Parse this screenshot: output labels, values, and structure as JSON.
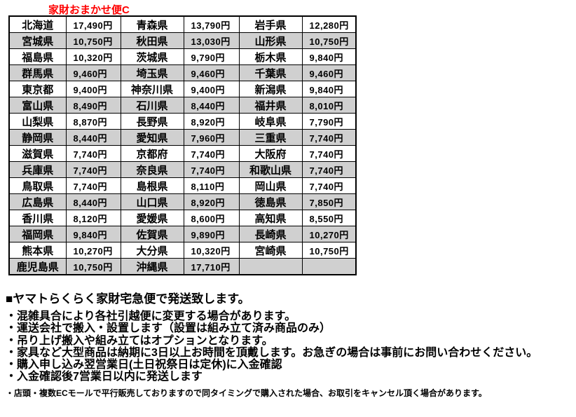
{
  "title": "家財おまかせ便C",
  "accent_color": "#ff0000",
  "table": {
    "row_shade_color": "#d0d0d0",
    "rows": [
      {
        "cells": [
          "北海道",
          "17,490円",
          "青森県",
          "13,790円",
          "岩手県",
          "12,280円"
        ]
      },
      {
        "cells": [
          "宮城県",
          "10,750円",
          "秋田県",
          "13,030円",
          "山形県",
          "10,750円"
        ]
      },
      {
        "cells": [
          "福島県",
          "10,320円",
          "茨城県",
          "9,790円",
          "栃木県",
          "9,840円"
        ]
      },
      {
        "cells": [
          "群馬県",
          "9,460円",
          "埼玉県",
          "9,460円",
          "千葉県",
          "9,460円"
        ]
      },
      {
        "cells": [
          "東京都",
          "9,400円",
          "神奈川県",
          "9,400円",
          "新潟県",
          "9,840円"
        ]
      },
      {
        "cells": [
          "富山県",
          "8,490円",
          "石川県",
          "8,440円",
          "福井県",
          "8,010円"
        ]
      },
      {
        "cells": [
          "山梨県",
          "8,870円",
          "長野県",
          "8,920円",
          "岐阜県",
          "7,790円"
        ]
      },
      {
        "cells": [
          "静岡県",
          "8,440円",
          "愛知県",
          "7,960円",
          "三重県",
          "7,740円"
        ]
      },
      {
        "cells": [
          "滋賀県",
          "7,740円",
          "京都府",
          "7,740円",
          "大阪府",
          "7,740円"
        ]
      },
      {
        "cells": [
          "兵庫県",
          "7,740円",
          "奈良県",
          "7,740円",
          "和歌山県",
          "7,740円"
        ]
      },
      {
        "cells": [
          "鳥取県",
          "7,740円",
          "島根県",
          "8,110円",
          "岡山県",
          "7,740円"
        ]
      },
      {
        "cells": [
          "広島県",
          "8,440円",
          "山口県",
          "8,920円",
          "徳島県",
          "7,850円"
        ]
      },
      {
        "cells": [
          "香川県",
          "8,120円",
          "愛媛県",
          "8,600円",
          "高知県",
          "8,550円"
        ]
      },
      {
        "cells": [
          "福岡県",
          "9,840円",
          "佐賀県",
          "9,890円",
          "長崎県",
          "10,270円"
        ]
      },
      {
        "cells": [
          "熊本県",
          "10,270円",
          "大分県",
          "10,320円",
          "宮崎県",
          "10,750円"
        ]
      },
      {
        "cells": [
          "鹿児島県",
          "10,750円",
          "沖縄県",
          "17,710円",
          "",
          ""
        ]
      }
    ]
  },
  "notes": {
    "heading": "■ヤマトらくらく家財宅急便で発送致します。",
    "bullets": [
      "・混雑具合により各社引越便に変更する場合があります。",
      "・運送会社で搬入・設置します（設置は組み立て済み商品のみ）",
      "・吊り上げ搬入や組み立てはオプションとなります。",
      "・家具など大型商品は納期に3日以上お時間を頂戴します。お急ぎの場合は事前にお問い合わせください。",
      "・購入申し込み翌営業日(土日祝祭日は定休)に入金確認",
      "・入金確認後7営業日以内に発送します"
    ],
    "fine_print": "・店頭・複数ECモールで平行販売しておりますので同タイミングで購入された場合、お取引をキャンセル頂く場合があります。"
  }
}
